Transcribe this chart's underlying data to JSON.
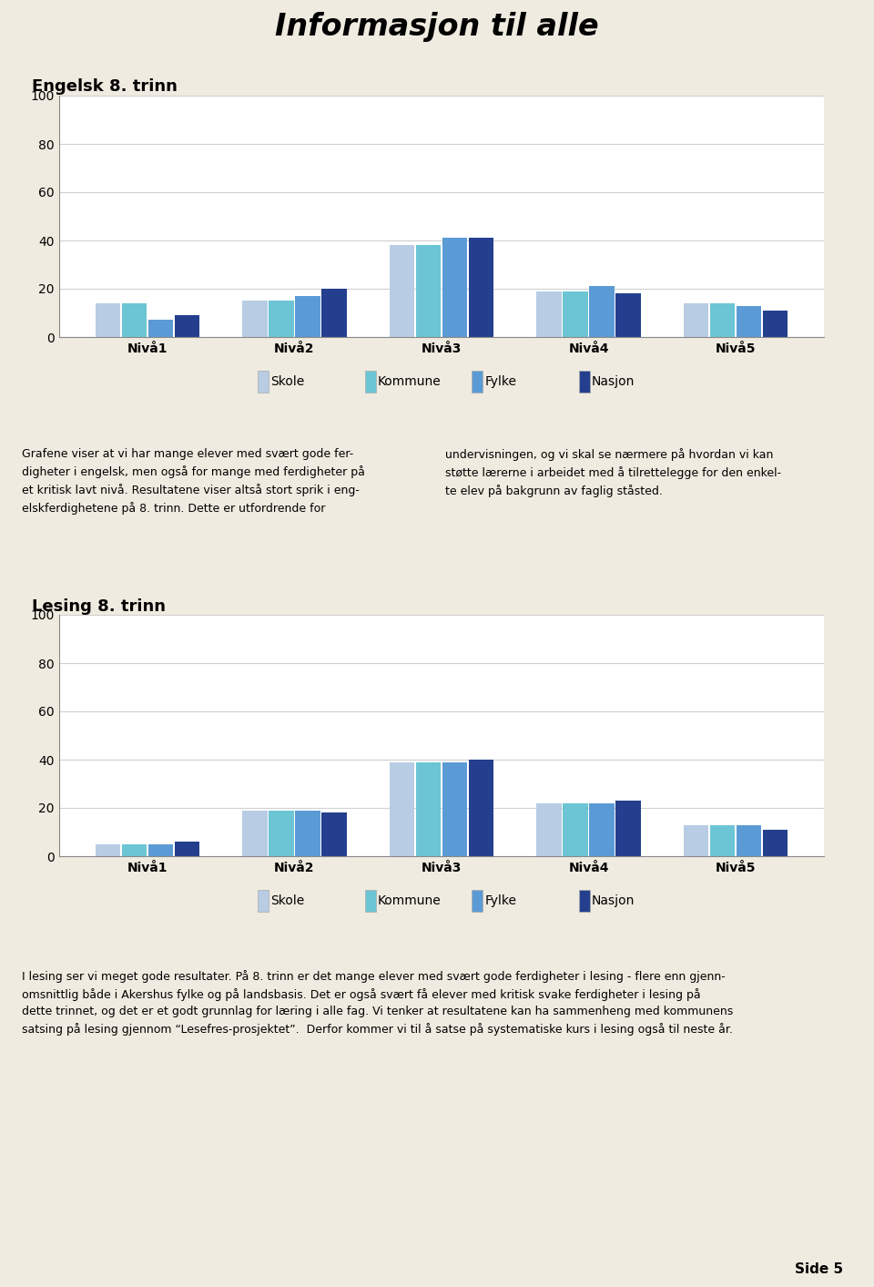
{
  "title": "Informasjon til alle",
  "title_bg_color": "#7ed321",
  "title_border_color": "#222222",
  "page_bg_color": "#f0ebe0",
  "chart_panel_bg": "#ede8dc",
  "plot_bg_color": "#ffffff",
  "chart1_title": "Engelsk 8. trinn",
  "chart2_title": "Lesing 8. trinn",
  "categories": [
    "Nivå1",
    "Nivå2",
    "Nivå3",
    "Nivå4",
    "Nivå5"
  ],
  "legend_labels": [
    "Skole",
    "Kommune",
    "Fylke",
    "Nasjon"
  ],
  "bar_colors": [
    "#b8cce4",
    "#6cc5d4",
    "#5b9bd5",
    "#243f8e"
  ],
  "chart1_data": {
    "Skole": [
      14,
      15,
      38,
      19,
      14
    ],
    "Kommune": [
      14,
      15,
      38,
      19,
      14
    ],
    "Fylke": [
      7,
      17,
      41,
      21,
      13
    ],
    "Nasjon": [
      9,
      20,
      41,
      18,
      11
    ]
  },
  "chart2_data": {
    "Skole": [
      5,
      19,
      39,
      22,
      13
    ],
    "Kommune": [
      5,
      19,
      39,
      22,
      13
    ],
    "Fylke": [
      5,
      19,
      39,
      22,
      13
    ],
    "Nasjon": [
      6,
      18,
      40,
      23,
      11
    ]
  },
  "ylim": [
    0,
    100
  ],
  "yticks": [
    0,
    20,
    40,
    60,
    80,
    100
  ],
  "body_text_left": "Grafene viser at vi har mange elever med svært gode fer-\ndigheter i engelsk, men også for mange med ferdigheter på\net kritisk lavt nivå. Resultatene viser altså stort sprik i eng-\nelskferdighetene på 8. trinn. Dette er utfordrende for",
  "body_text_right": "undervisningen, og vi skal se nærmere på hvordan vi kan\nstøtte lærerne i arbeidet med å tilrettelegge for den enkel-\nte elev på bakgrunn av faglig ståsted.",
  "body_text2_lines": [
    "I lesing ser vi meget gode resultater. På 8. trinn er det mange elever med svært gode ferdigheter i lesing - flere enn gjenn-",
    "omsnittlig både i Akershus fylke og på landsbasis. Det er også svært få elever med kritisk svake ferdigheter i lesing på",
    "dette trinnet, og det er et godt grunnlag for læring i alle fag. Vi tenker at resultatene kan ha sammenheng med kommunens",
    "satsing på lesing gjennom “Lesefres-prosjektet”.  Derfor kommer vi til å satse på systematiske kurs i lesing også til neste år."
  ],
  "footer_bg": "#c8b89a",
  "footer_text": "Side 5",
  "grid_color": "#d0d0d0",
  "spine_color": "#888888"
}
